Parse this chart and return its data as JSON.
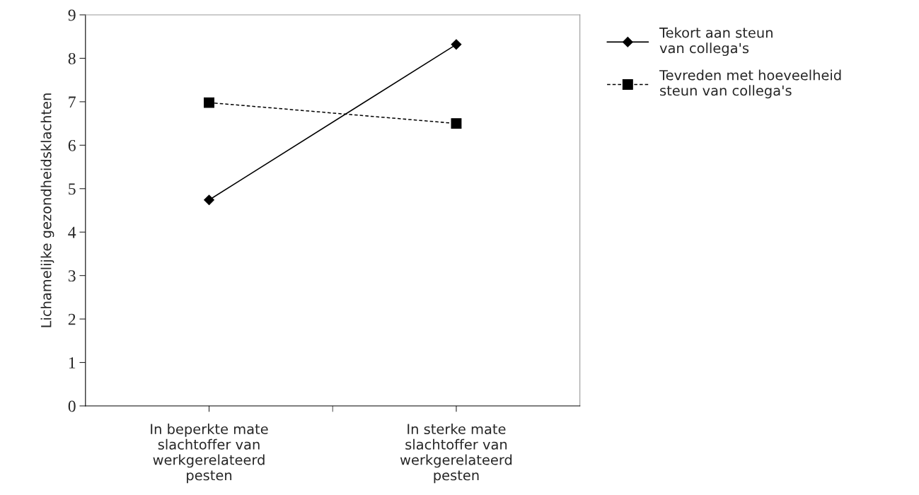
{
  "chart_data": {
    "type": "line",
    "categories": [
      "In beperkte mate\nslachtoffer van\nwerkgerelateerd\npesten",
      "In sterke mate\nslachtoffer van\nwerkgerelateerd\npesten"
    ],
    "ylabel": "Lichamelijke gezondheidsklachten",
    "ylim": [
      0,
      9
    ],
    "yticks": [
      0,
      1,
      2,
      3,
      4,
      5,
      6,
      7,
      8,
      9
    ],
    "series": [
      {
        "name": "Tekort aan steun\nvan collega's",
        "color": "#000000",
        "values": [
          4.74,
          8.32
        ],
        "marker": "diamond",
        "line_style": "solid"
      },
      {
        "name": "Tevreden met hoeveelheid\nsteun van collega's",
        "color": "#000000",
        "values": [
          6.98,
          6.5
        ],
        "marker": "square",
        "line_style": "dashed"
      }
    ],
    "legend": "right",
    "grid": false
  }
}
